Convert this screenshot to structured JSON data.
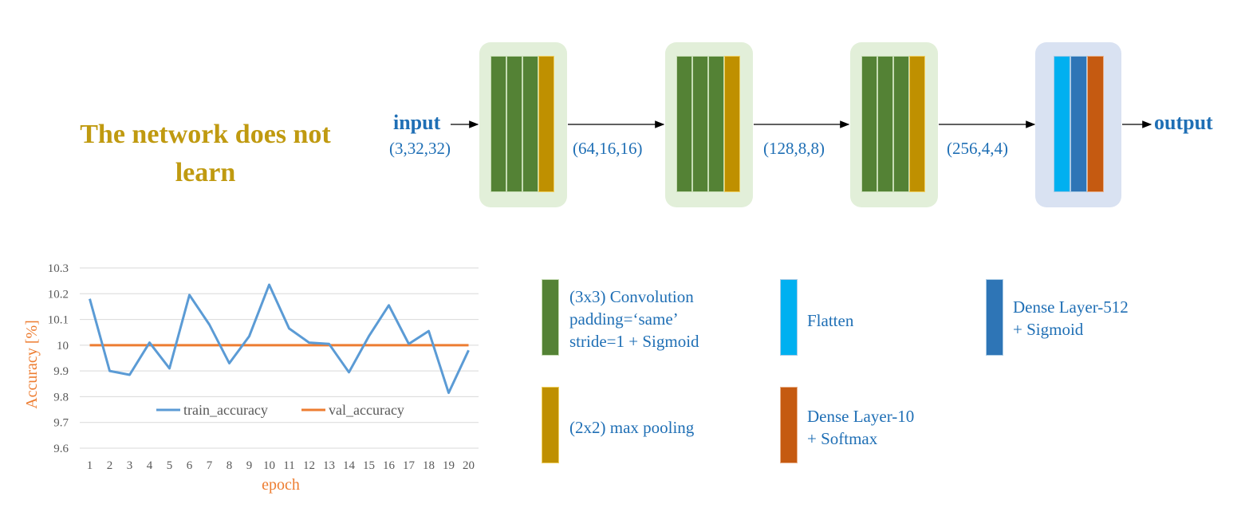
{
  "headline": "The network does not learn",
  "input_label": "input",
  "output_label": "output",
  "dims": [
    "(3,32,32)",
    "(64,16,16)",
    "(128,8,8)",
    "(256,4,4)"
  ],
  "colors": {
    "conv": "#548235",
    "pool": "#BF9000",
    "flatten": "#00B0F0",
    "dense512": "#2E75B6",
    "dense10": "#C55A11",
    "train": "#5B9BD5",
    "val": "#ED7D31",
    "text_blue": "#1F6FB5",
    "headline": "#C09A10"
  },
  "legend": {
    "conv": "(3x3) Convolution\npadding=‘same’\nstride=1 + Sigmoid",
    "flatten": "Flatten",
    "dense512": "Dense Layer-512\n+ Sigmoid",
    "pool": "(2x2) max pooling",
    "dense10": "Dense Layer-10\n+ Softmax"
  },
  "chart_data": {
    "type": "line",
    "xlabel": "epoch",
    "ylabel": "Accuracy [%]",
    "ylim": [
      9.6,
      10.3
    ],
    "yticks": [
      "9.6",
      "9.7",
      "9.8",
      "9.9",
      "10",
      "10.1",
      "10.2",
      "10.3"
    ],
    "x": [
      1,
      2,
      3,
      4,
      5,
      6,
      7,
      8,
      9,
      10,
      11,
      12,
      13,
      14,
      15,
      16,
      17,
      18,
      19,
      20
    ],
    "grid": true,
    "legend_position": "bottom-inside",
    "series": [
      {
        "name": "train_accuracy",
        "color": "#5B9BD5",
        "values": [
          10.18,
          9.9,
          9.885,
          10.01,
          9.91,
          10.195,
          10.08,
          9.93,
          10.035,
          10.235,
          10.065,
          10.01,
          10.005,
          9.895,
          10.035,
          10.155,
          10.005,
          10.055,
          9.815,
          9.98
        ]
      },
      {
        "name": "val_accuracy",
        "color": "#ED7D31",
        "values": [
          10,
          10,
          10,
          10,
          10,
          10,
          10,
          10,
          10,
          10,
          10,
          10,
          10,
          10,
          10,
          10,
          10,
          10,
          10,
          10
        ]
      }
    ]
  }
}
